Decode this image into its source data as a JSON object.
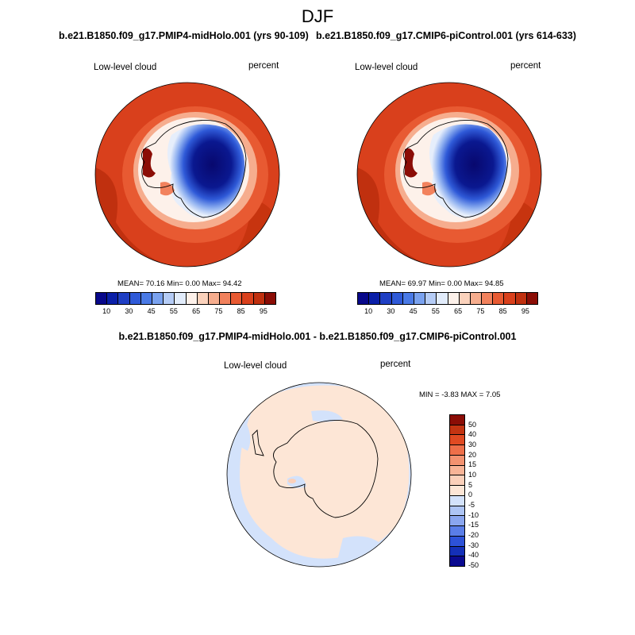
{
  "figure": {
    "title": "DJF",
    "case1": {
      "title": "b.e21.B1850.f09_g17.PMIP4-midHolo.001 (yrs 90-109)",
      "variable": "Low-level cloud",
      "units": "percent",
      "stats": "MEAN=  70.16  Min=   0.00  Max=  94.42"
    },
    "case2": {
      "title": "b.e21.B1850.f09_g17.CMIP6-piControl.001 (yrs 614-633)",
      "variable": "Low-level cloud",
      "units": "percent",
      "stats": "MEAN=  69.97  Min=   0.00  Max=  94.85"
    },
    "diff": {
      "title": "b.e21.B1850.f09_g17.PMIP4-midHolo.001 - b.e21.B1850.f09_g17.CMIP6-piControl.001",
      "variable": "Low-level cloud",
      "units": "percent",
      "stats": "MIN =  -3.83 MAX =   7.05"
    }
  },
  "colorbars": {
    "main": {
      "colors": [
        "#08088a",
        "#0a1fa8",
        "#1f3fc4",
        "#2f5ad8",
        "#4a7ae6",
        "#7aa2ef",
        "#b5ccf6",
        "#e2ecfb",
        "#fdf1ea",
        "#fbd2bc",
        "#f6ad8e",
        "#f2825d",
        "#e85a32",
        "#d9401c",
        "#c0300f",
        "#8b0d06"
      ],
      "tick_labels": [
        "10",
        "30",
        "45",
        "55",
        "65",
        "75",
        "85",
        "95"
      ]
    },
    "diff": {
      "colors": [
        "#0a0a90",
        "#1430b8",
        "#2d52d8",
        "#5a7ee8",
        "#8aa6ef",
        "#adc4f4",
        "#d3e2fb",
        "#fde6d6",
        "#fbd0ba",
        "#f8b497",
        "#f39270",
        "#ee6f49",
        "#e04a22",
        "#c33412",
        "#8b0d06"
      ],
      "tick_labels": [
        "50",
        "40",
        "30",
        "20",
        "15",
        "10",
        "5",
        "0",
        "-5",
        "-10",
        "-15",
        "-20",
        "-30",
        "-40",
        "-50"
      ]
    }
  }
}
